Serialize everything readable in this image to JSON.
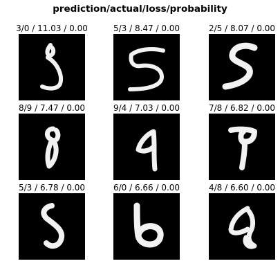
{
  "figure": {
    "title": "prediction/actual/loss/probability"
  },
  "panels": [
    {
      "label": "3/0 / 11.03 / 0.00",
      "prediction": 3,
      "actual": 0,
      "loss": 11.03,
      "probability": 0.0
    },
    {
      "label": "5/3 / 8.47 / 0.00",
      "prediction": 5,
      "actual": 3,
      "loss": 8.47,
      "probability": 0.0
    },
    {
      "label": "2/5 / 8.07 / 0.00",
      "prediction": 2,
      "actual": 5,
      "loss": 8.07,
      "probability": 0.0
    },
    {
      "label": "8/9 / 7.47 / 0.00",
      "prediction": 8,
      "actual": 9,
      "loss": 7.47,
      "probability": 0.0
    },
    {
      "label": "9/4 / 7.03 / 0.00",
      "prediction": 9,
      "actual": 4,
      "loss": 7.03,
      "probability": 0.0
    },
    {
      "label": "7/8 / 6.82 / 0.00",
      "prediction": 7,
      "actual": 8,
      "loss": 6.82,
      "probability": 0.0
    },
    {
      "label": "5/3 / 6.78 / 0.00",
      "prediction": 5,
      "actual": 3,
      "loss": 6.78,
      "probability": 0.0
    },
    {
      "label": "6/0 / 6.66 / 0.00",
      "prediction": 6,
      "actual": 0,
      "loss": 6.66,
      "probability": 0.0
    },
    {
      "label": "4/8 / 6.60 / 0.00",
      "prediction": 4,
      "actual": 8,
      "loss": 6.6,
      "probability": 0.0
    }
  ]
}
